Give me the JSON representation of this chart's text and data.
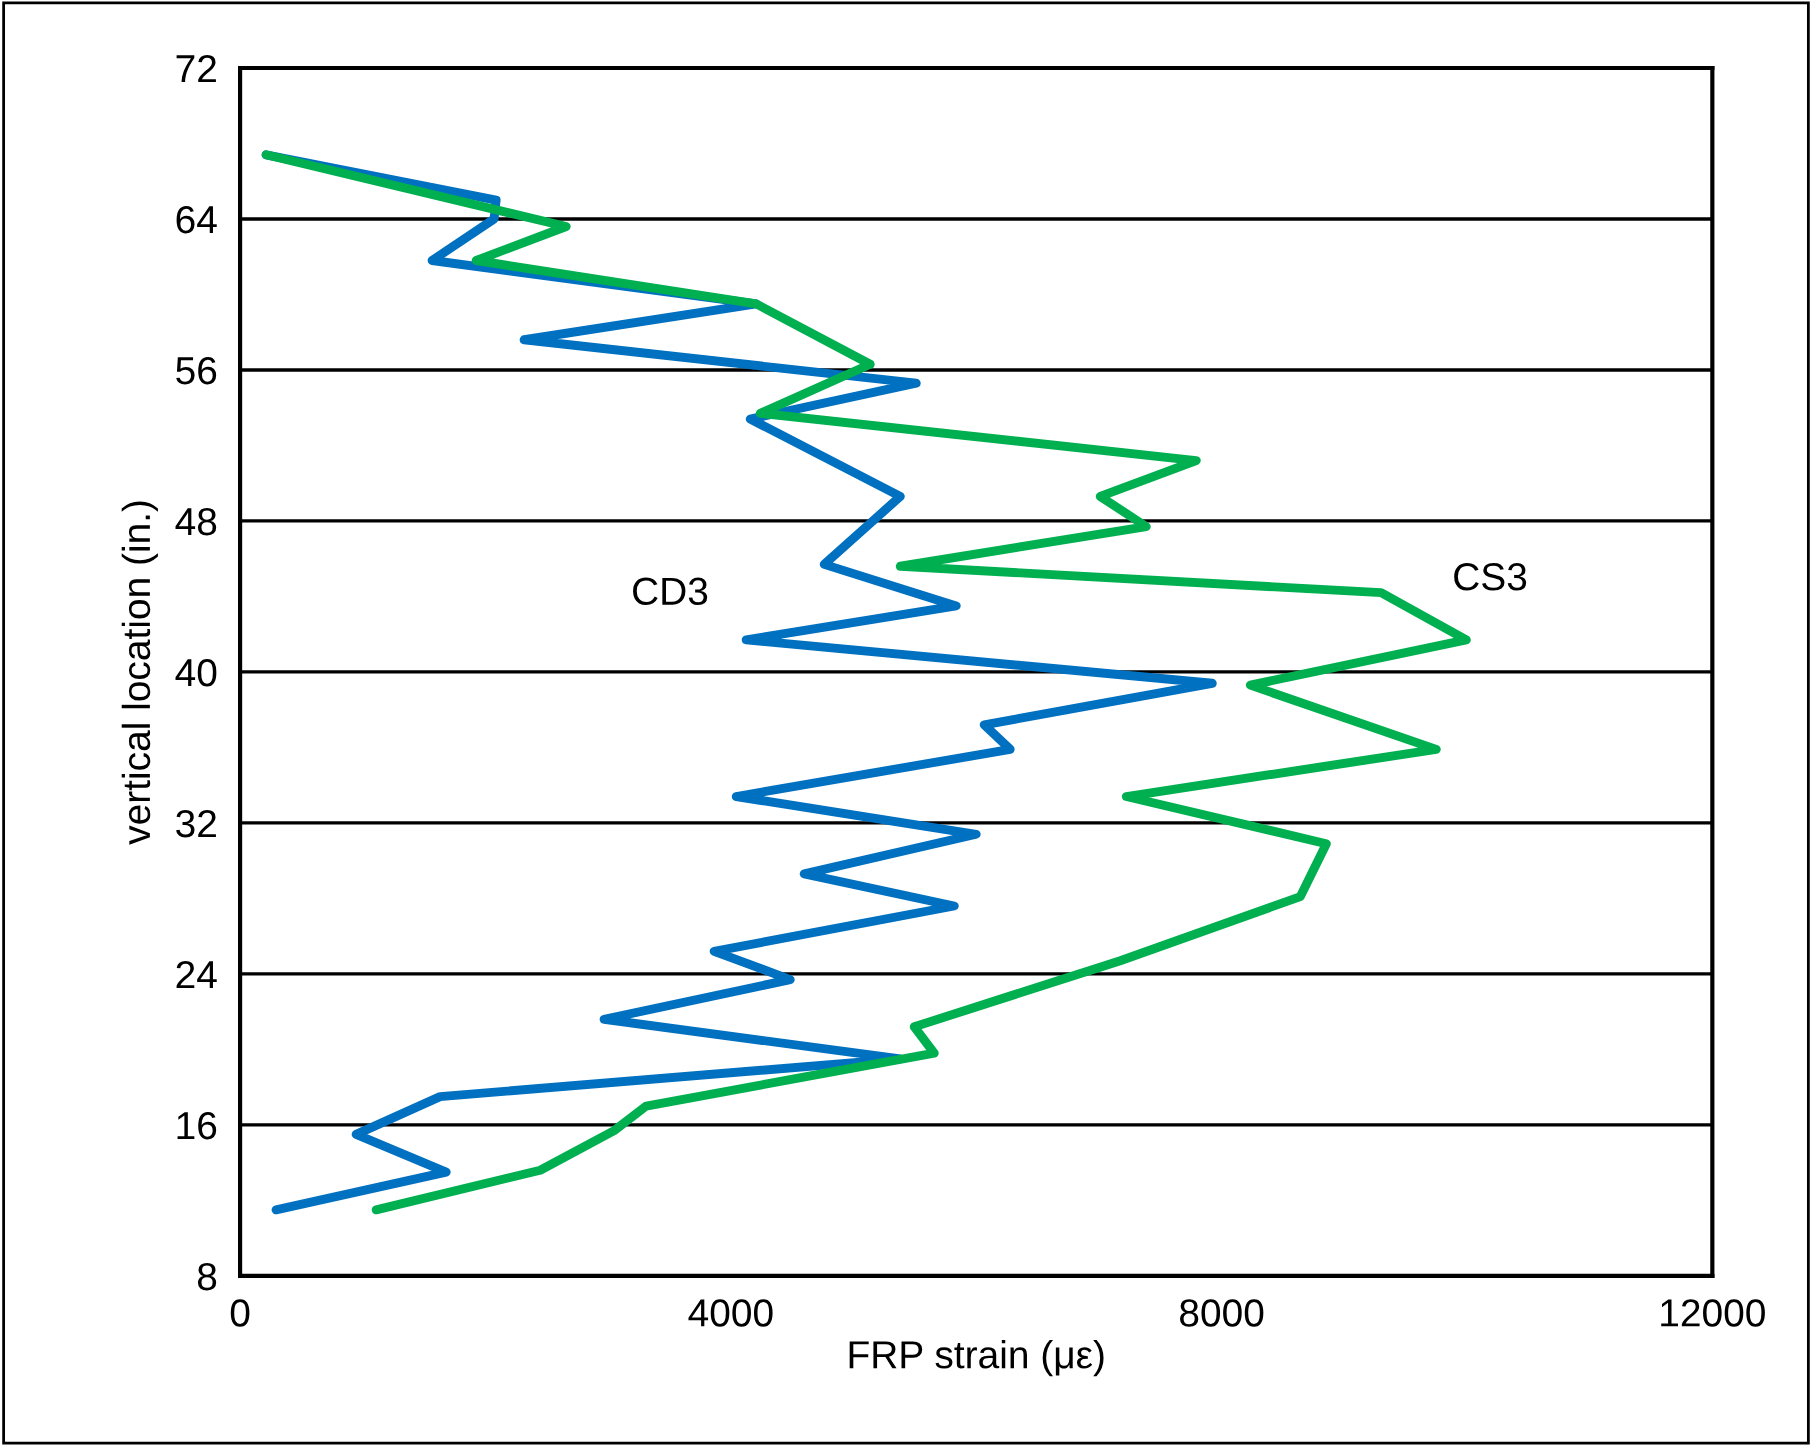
{
  "chart_data": {
    "type": "line",
    "xlabel": "FRP strain (με)",
    "ylabel": "vertical location (in.)",
    "xlim": [
      0,
      12000
    ],
    "xticks": [
      0,
      4000,
      8000,
      12000
    ],
    "ylim": [
      8,
      72
    ],
    "yticks": [
      8,
      16,
      24,
      32,
      40,
      48,
      56,
      64,
      72
    ],
    "grid": "y",
    "marker": "none",
    "line_style": "solid",
    "series": [
      {
        "name": "CD3",
        "color": "#0070c0",
        "x": [
          212,
          2087,
          2070,
          1565,
          4207,
          2315,
          5511,
          4158,
          5381,
          4761,
          5837,
          4125,
          7924,
          6065,
          6277,
          4044,
          6000,
          4598,
          5821,
          3864,
          4484,
          2967,
          5381,
          1630,
          946,
          1680,
          293
        ],
        "values": [
          67.4,
          65.0,
          64.0,
          61.8,
          59.5,
          57.6,
          55.3,
          53.4,
          49.3,
          45.7,
          43.5,
          41.7,
          39.4,
          37.2,
          35.9,
          33.4,
          31.4,
          29.3,
          27.6,
          25.2,
          23.7,
          21.6,
          19.5,
          17.5,
          15.5,
          13.5,
          11.5
        ]
      },
      {
        "name": "CS3",
        "color": "#00b050",
        "x": [
          212,
          2658,
          1924,
          4207,
          5136,
          4240,
          7794,
          7011,
          7386,
          5381,
          9300,
          9995,
          8234,
          9750,
          7223,
          8854,
          8642,
          7174,
          5495,
          5658,
          3310,
          3049,
          2446,
          1109
        ],
        "values": [
          67.4,
          63.6,
          61.8,
          59.5,
          56.3,
          53.7,
          51.2,
          49.3,
          47.7,
          45.6,
          44.2,
          41.7,
          39.3,
          35.9,
          33.4,
          30.9,
          28.1,
          24.7,
          21.2,
          19.8,
          17.0,
          15.7,
          13.6,
          11.5
        ]
      }
    ]
  }
}
